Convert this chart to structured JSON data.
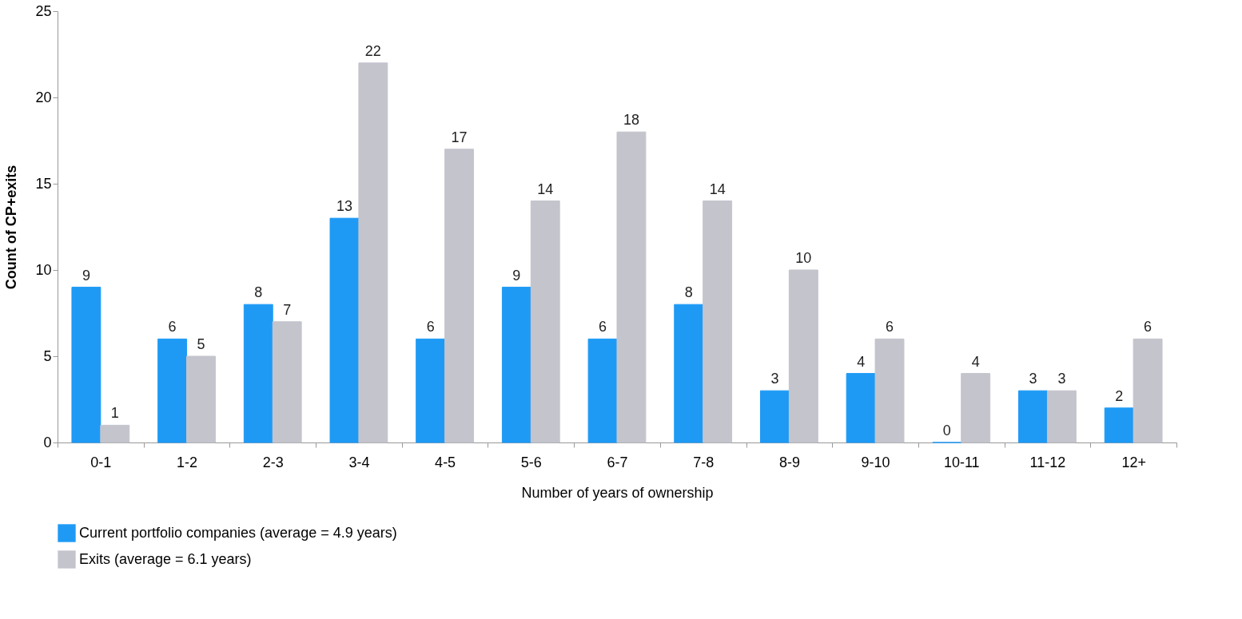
{
  "chart_data": {
    "type": "bar",
    "xlabel": "Number of years of ownership",
    "ylabel": "Count of CP+exits",
    "categories": [
      "0-1",
      "1-2",
      "2-3",
      "3-4",
      "4-5",
      "5-6",
      "6-7",
      "7-8",
      "8-9",
      "9-10",
      "10-11",
      "11-12",
      "12+"
    ],
    "series": [
      {
        "name": "Current portfolio companies (average = 4.9 years)",
        "color": "#1e9af5",
        "values": [
          9,
          6,
          8,
          13,
          6,
          9,
          6,
          8,
          3,
          4,
          0,
          3,
          2
        ]
      },
      {
        "name": "Exits (average = 6.1 years)",
        "color": "#c4c4cd",
        "values": [
          1,
          5,
          7,
          22,
          17,
          14,
          18,
          14,
          10,
          6,
          4,
          3,
          6
        ]
      }
    ],
    "ylim": [
      0,
      25
    ],
    "yticks": [
      0,
      5,
      10,
      15,
      20,
      25
    ],
    "grid": false,
    "legend": "bottom",
    "data_labels": true
  }
}
